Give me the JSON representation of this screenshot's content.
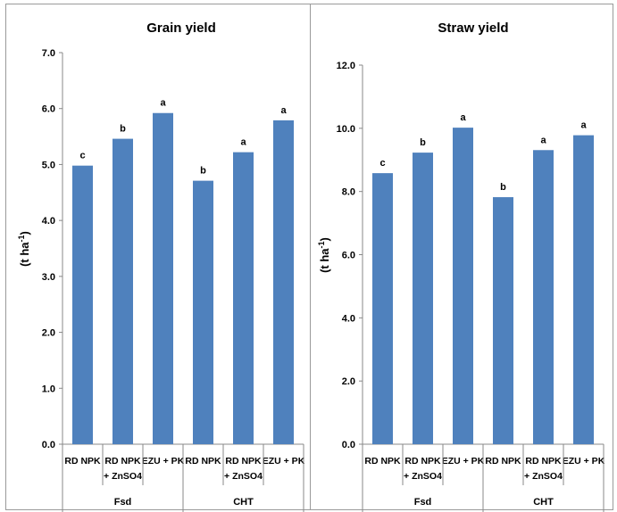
{
  "chart_data": [
    {
      "type": "bar",
      "title": "Grain yield",
      "ylabel": "(t ha-1)",
      "ylim": [
        0,
        7
      ],
      "yticks": [
        "0.0",
        "1.0",
        "2.0",
        "3.0",
        "4.0",
        "5.0",
        "6.0",
        "7.0"
      ],
      "categories": [
        "RD NPK",
        "RD NPK + ZnSO4",
        "EZU + PK",
        "RD NPK",
        "RD NPK + ZnSO4",
        "EZU + PK"
      ],
      "groups": [
        {
          "name": "Fsd",
          "count": 3
        },
        {
          "name": "CHT",
          "count": 3
        }
      ],
      "values": [
        4.98,
        5.46,
        5.92,
        4.71,
        5.22,
        5.79
      ],
      "letters": [
        "c",
        "b",
        "a",
        "b",
        "a",
        "a"
      ],
      "bar_color": "#4f81bd",
      "grid": false
    },
    {
      "type": "bar",
      "title": "Straw yield",
      "ylabel": "(t ha-1)",
      "ylim": [
        0,
        12
      ],
      "yticks": [
        "0.0",
        "2.0",
        "4.0",
        "6.0",
        "8.0",
        "10.0",
        "12.0"
      ],
      "categories": [
        "RD NPK",
        "RD NPK + ZnSO4",
        "EZU + PK",
        "RD NPK",
        "RD NPK + ZnSO4",
        "EZU + PK"
      ],
      "groups": [
        {
          "name": "Fsd",
          "count": 3
        },
        {
          "name": "CHT",
          "count": 3
        }
      ],
      "values": [
        8.58,
        9.23,
        10.02,
        7.82,
        9.31,
        9.78
      ],
      "letters": [
        "c",
        "b",
        "a",
        "b",
        "a",
        "a"
      ],
      "bar_color": "#4f81bd",
      "grid": false
    }
  ]
}
